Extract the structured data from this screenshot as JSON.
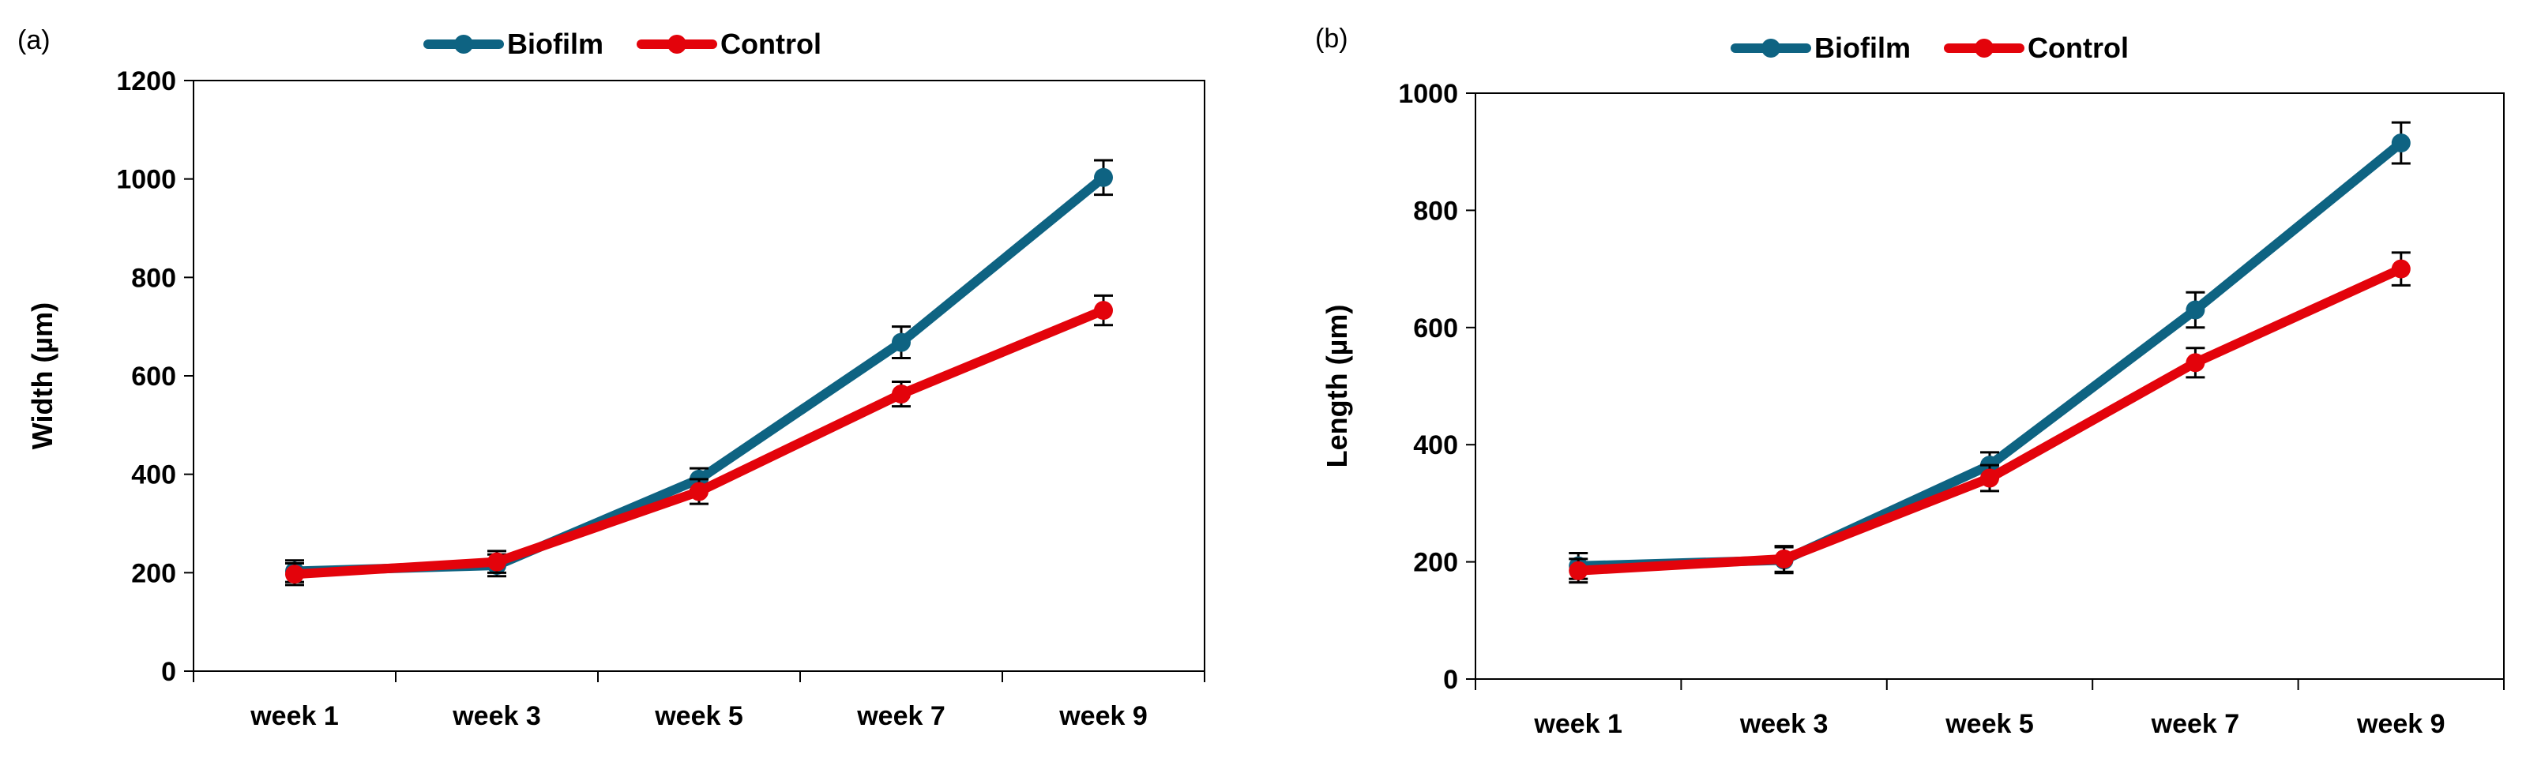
{
  "chart_data": [
    {
      "type": "line",
      "panel_label": "(a)",
      "categories": [
        "week 1",
        "week 3",
        "week 5",
        "week 7",
        "week 9"
      ],
      "ylabel": "Width (µm)",
      "xlabel": "",
      "ylim": [
        0,
        1200
      ],
      "yticks": [
        "0",
        "200",
        "400",
        "600",
        "800",
        "1000",
        "1200"
      ],
      "legend_position": "top-center",
      "series": [
        {
          "name": "Biofilm",
          "color": "#0e6382",
          "values": [
            203,
            215,
            390,
            668,
            1003
          ],
          "errors": [
            22,
            22,
            22,
            32,
            35
          ]
        },
        {
          "name": "Control",
          "color": "#e3030b",
          "values": [
            197,
            222,
            365,
            563,
            733
          ],
          "errors": [
            22,
            22,
            25,
            25,
            30
          ]
        }
      ]
    },
    {
      "type": "line",
      "panel_label": "(b)",
      "categories": [
        "week 1",
        "week 3",
        "week 5",
        "week 7",
        "week 9"
      ],
      "ylabel": "Length (µm)",
      "xlabel": "",
      "ylim": [
        0,
        1000
      ],
      "yticks": [
        "0",
        "200",
        "400",
        "600",
        "800",
        "1000"
      ],
      "legend_position": "top-center",
      "series": [
        {
          "name": "Biofilm",
          "color": "#0e6382",
          "values": [
            193,
            203,
            365,
            630,
            915
          ],
          "errors": [
            22,
            22,
            22,
            30,
            35
          ]
        },
        {
          "name": "Control",
          "color": "#e3030b",
          "values": [
            185,
            205,
            343,
            540,
            700
          ],
          "errors": [
            20,
            22,
            22,
            25,
            28
          ]
        }
      ]
    }
  ]
}
